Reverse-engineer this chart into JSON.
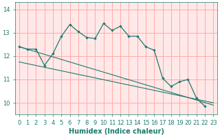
{
  "xlabel": "Humidex (Indice chaleur)",
  "bg_color": "#ffffff",
  "plot_bg_color": "#ffe8e8",
  "grid_color": "#ffaaaa",
  "line_color": "#1a7a6e",
  "xlim": [
    -0.5,
    23.5
  ],
  "ylim": [
    9.5,
    14.3
  ],
  "yticks": [
    10,
    11,
    12,
    13,
    14
  ],
  "xticks": [
    0,
    1,
    2,
    3,
    4,
    5,
    6,
    7,
    8,
    9,
    10,
    11,
    12,
    13,
    14,
    15,
    16,
    17,
    18,
    19,
    20,
    21,
    22,
    23
  ],
  "curve1_x": [
    0,
    1,
    2,
    3,
    4,
    5,
    6,
    7,
    8,
    9,
    10,
    11,
    12,
    13,
    14,
    15,
    16,
    17,
    18,
    19,
    20,
    21,
    22
  ],
  "curve1_y": [
    12.4,
    12.3,
    12.3,
    11.6,
    12.1,
    12.85,
    13.35,
    13.05,
    12.8,
    12.75,
    13.4,
    13.1,
    13.28,
    12.85,
    12.85,
    12.4,
    12.25,
    11.05,
    10.7,
    10.9,
    11.0,
    10.2,
    9.85
  ],
  "curve2_x": [
    0,
    23
  ],
  "curve2_y": [
    12.4,
    9.9
  ],
  "curve3_x": [
    0,
    23
  ],
  "curve3_y": [
    11.75,
    10.0
  ],
  "xlabel_fontsize": 7,
  "tick_fontsize": 6,
  "xlabel_fontweight": "bold"
}
